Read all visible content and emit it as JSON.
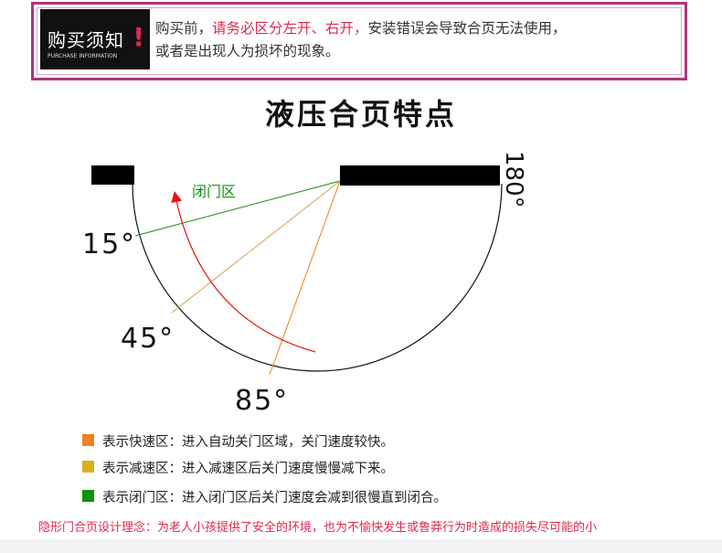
{
  "notice": {
    "tag_title": "购买须知",
    "tag_sub": "PURCHASE INFORMATION",
    "tag_mark": "!",
    "line1_a": "购买前，",
    "line1_b": "请务必区分左开、右开，",
    "line1_c": "安装错误会导致合页无法使用，",
    "line2": "或者是出现人为损坏的现象。"
  },
  "title": "液压合页特点",
  "diagram": {
    "angle_180": "180°",
    "angle_15": "15°",
    "angle_45": "45°",
    "angle_85": "85°",
    "zone_label": "闭门区"
  },
  "colors": {
    "fast": "#f08020",
    "slow": "#d8b020",
    "close": "#109010",
    "arrow": "#e81010",
    "accent": "#e0284f",
    "border": "#b0357a"
  },
  "legend": [
    {
      "text": "表示快速区：进入自动关门区域，关门速度较快。"
    },
    {
      "text": "表示减速区：进入减速区后关门速度慢慢减下来。"
    },
    {
      "text": "表示闭门区：进入闭门区后关门速度会减到很慢直到闭合。"
    }
  ],
  "footer": "隐形门合页设计理念：为老人小孩提供了安全的环境，也为不愉快发生或鲁莽行为时造成的损失尽可能的小"
}
